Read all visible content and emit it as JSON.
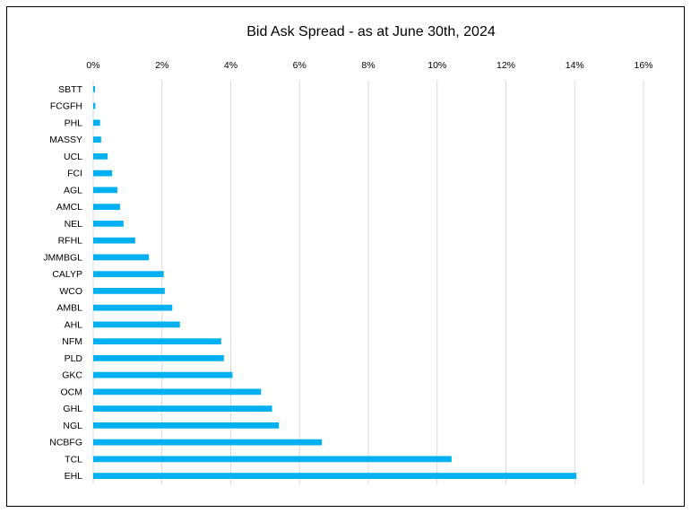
{
  "chart_data": {
    "type": "bar",
    "orientation": "horizontal",
    "title": "Bid Ask Spread - as at June 30th, 2024",
    "xlabel": "",
    "ylabel": "",
    "xlim": [
      0,
      16
    ],
    "x_ticks": [
      "0%",
      "2%",
      "4%",
      "6%",
      "8%",
      "10%",
      "12%",
      "14%",
      "16%"
    ],
    "x_axis_position": "top",
    "grid": true,
    "legend": "none",
    "bar_color": "#00b0f0",
    "categories": [
      "SBTT",
      "FCGFH",
      "PHL",
      "MASSY",
      "UCL",
      "FCI",
      "AGL",
      "AMCL",
      "NEL",
      "RFHL",
      "JMMBGL",
      "CALYP",
      "WCO",
      "AMBL",
      "AHL",
      "NFM",
      "PLD",
      "GKC",
      "OCM",
      "GHL",
      "NGL",
      "NCBFG",
      "TCL",
      "EHL"
    ],
    "values": [
      0.05,
      0.06,
      0.2,
      0.23,
      0.42,
      0.55,
      0.7,
      0.78,
      0.88,
      1.22,
      1.62,
      2.05,
      2.08,
      2.3,
      2.52,
      3.72,
      3.8,
      4.05,
      4.88,
      5.2,
      5.4,
      6.65,
      10.42,
      14.05
    ]
  }
}
